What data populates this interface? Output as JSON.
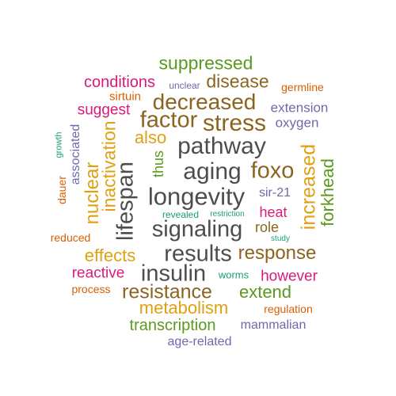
{
  "words": {
    "suppressed": "suppressed",
    "conditions": "conditions",
    "unclear": "unclear",
    "disease": "disease",
    "germline": "germline",
    "sirtuin": "sirtuin",
    "decreased": "decreased",
    "suggest": "suggest",
    "extension": "extension",
    "factor": "factor",
    "stress": "stress",
    "oxygen": "oxygen",
    "also": "also",
    "pathway": "pathway",
    "growth": "growth",
    "associated": "associated",
    "inactivation": "inactivation",
    "thus": "thus",
    "increased": "increased",
    "aging": "aging",
    "foxo": "foxo",
    "forkhead": "forkhead",
    "dauer": "dauer",
    "nuclear": "nuclear",
    "lifespan": "lifespan",
    "longevity": "longevity",
    "sir21": "sir-21",
    "revealed": "revealed",
    "restriction": "restriction",
    "heat": "heat",
    "reduced": "reduced",
    "signaling": "signaling",
    "role": "role",
    "study": "study",
    "effects": "effects",
    "results": "results",
    "response": "response",
    "reactive": "reactive",
    "insulin": "insulin",
    "worms": "worms",
    "however": "however",
    "process": "process",
    "resistance": "resistance",
    "extend": "extend",
    "metabolism": "metabolism",
    "regulation": "regulation",
    "transcription": "transcription",
    "mammalian": "mammalian",
    "agerelated": "age-related"
  },
  "colors": {
    "gray": "#4d4d4d",
    "brown": "#8b6420",
    "green": "#5a9a1e",
    "pink": "#d81b7a",
    "purple": "#6e6aa8",
    "gold": "#e0a012",
    "orange": "#d95f02",
    "teal": "#1b9e77"
  }
}
